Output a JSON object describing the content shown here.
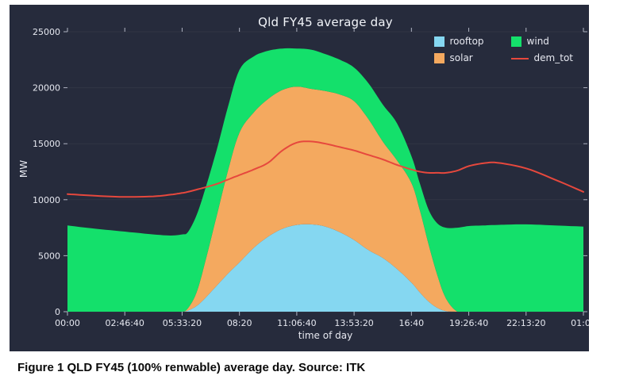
{
  "figure": {
    "title": "Qld FY45 average day",
    "xlabel": "time of day",
    "ylabel": "MW",
    "caption": "Figure 1 QLD FY45 (100% renwable) average day. Source: ITK"
  },
  "legend": {
    "rooftop": "rooftop",
    "solar": "solar",
    "wind": "wind",
    "dem_tot": "dem_tot"
  },
  "colors": {
    "background": "#262b3c",
    "rooftop": "#85d7f1",
    "solar": "#f4a95f",
    "wind": "#14e06b",
    "dem_tot": "#e6483d",
    "text": "#e6e8f0",
    "tick": "#b0b4c2"
  },
  "chart_data": {
    "type": "area",
    "stacked": true,
    "title": "Qld FY45 average day",
    "xlabel": "time of day",
    "ylabel": "MW",
    "xlim": [
      0,
      90000
    ],
    "ylim": [
      0,
      25000
    ],
    "grid": false,
    "legend_position": "top-right",
    "x_units": "seconds of day",
    "x": [
      0,
      5000,
      10000,
      15000,
      18000,
      20000,
      21000,
      22500,
      24000,
      26000,
      28000,
      30000,
      32500,
      35000,
      37500,
      40000,
      42500,
      45000,
      47500,
      50000,
      52500,
      55000,
      57500,
      60000,
      61500,
      63000,
      64500,
      66000,
      68000,
      70000,
      72500,
      75000,
      80000,
      85000,
      90000
    ],
    "series": [
      {
        "name": "rooftop",
        "values": [
          0,
          0,
          0,
          0,
          0,
          0,
          100,
          500,
          1200,
          2300,
          3400,
          4400,
          5700,
          6700,
          7400,
          7750,
          7800,
          7600,
          7100,
          6400,
          5500,
          4800,
          3800,
          2600,
          1700,
          900,
          350,
          50,
          0,
          0,
          0,
          0,
          0,
          0,
          0
        ]
      },
      {
        "name": "solar",
        "values": [
          0,
          0,
          0,
          0,
          0,
          0,
          200,
          1200,
          3200,
          6200,
          9200,
          11600,
          12100,
          12300,
          12400,
          12350,
          12100,
          12100,
          12300,
          12400,
          11700,
          10400,
          9700,
          8900,
          7300,
          5100,
          2950,
          1150,
          0,
          0,
          0,
          0,
          0,
          0,
          0
        ]
      },
      {
        "name": "wind",
        "values": [
          7700,
          7400,
          7150,
          6900,
          6800,
          6900,
          6800,
          6900,
          6500,
          5900,
          5700,
          5600,
          5000,
          4300,
          3700,
          3400,
          3500,
          3300,
          3100,
          3000,
          3200,
          3300,
          3300,
          2400,
          2400,
          3100,
          4600,
          6300,
          7500,
          7650,
          7700,
          7750,
          7800,
          7700,
          7600
        ]
      }
    ],
    "line_series": {
      "name": "dem_tot",
      "values": [
        10500,
        10350,
        10250,
        10300,
        10450,
        10600,
        10700,
        10900,
        11100,
        11400,
        11800,
        12200,
        12700,
        13300,
        14400,
        15100,
        15200,
        15000,
        14700,
        14400,
        14000,
        13600,
        13100,
        12700,
        12500,
        12400,
        12400,
        12400,
        12600,
        13000,
        13250,
        13300,
        12800,
        11800,
        10700
      ]
    },
    "x_tick_values": [
      0,
      10000,
      20000,
      30000,
      40000,
      50000,
      60000,
      70000,
      80000,
      90000
    ],
    "x_tick_labels": [
      "00:00",
      "02:46:40",
      "05:33:20",
      "08:20",
      "11:06:40",
      "13:53:20",
      "16:40",
      "19:26:40",
      "22:13:20",
      "01:00"
    ],
    "y_ticks": [
      0,
      5000,
      10000,
      15000,
      20000,
      25000
    ]
  }
}
